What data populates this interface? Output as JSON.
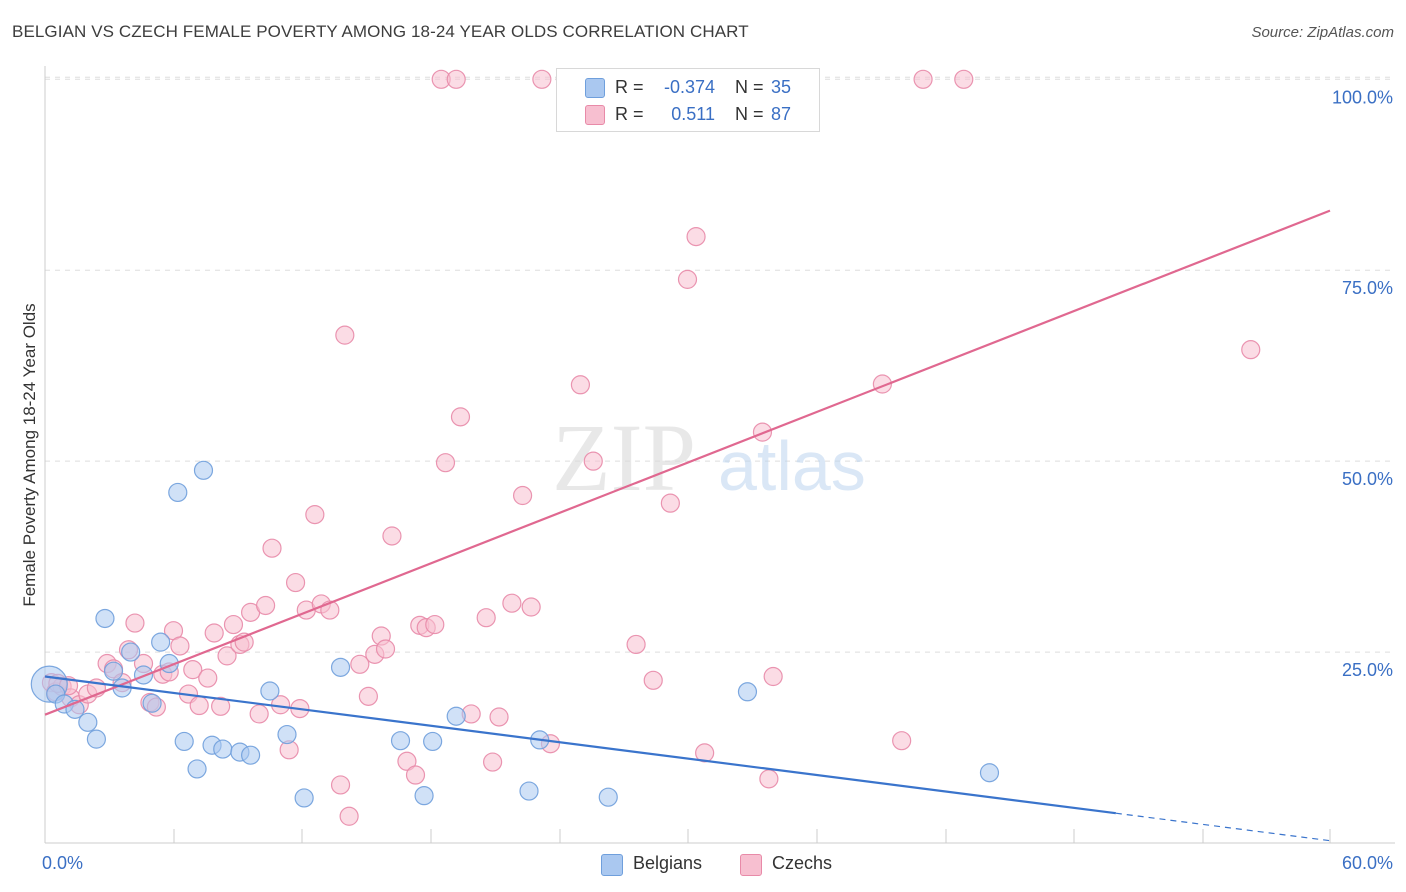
{
  "title": "BELGIAN VS CZECH FEMALE POVERTY AMONG 18-24 YEAR OLDS CORRELATION CHART",
  "source": "Source: ZipAtlas.com",
  "watermark": {
    "zip": "ZIP",
    "atlas": "atlas"
  },
  "legend_top": {
    "belgians": {
      "r_label": "R =",
      "r_value": "-0.374",
      "n_label": "N =",
      "n_value": "35"
    },
    "czechs": {
      "r_label": "R =",
      "r_value": "0.511",
      "n_label": "N =",
      "n_value": "87"
    }
  },
  "legend_bottom": {
    "belgians": "Belgians",
    "czechs": "Czechs"
  },
  "colors": {
    "belgians_fill": "#aac8f0",
    "belgians_stroke": "#6f9fdc",
    "belgians_line": "#3a74cc",
    "czechs_fill": "#f7bfd0",
    "czechs_stroke": "#e88aa8",
    "czechs_line": "#e06890",
    "axis_text": "#3a6fc4",
    "grid": "#dddddd"
  },
  "chart_data": {
    "type": "scatter",
    "title": "BELGIAN VS CZECH FEMALE POVERTY AMONG 18-24 YEAR OLDS CORRELATION CHART",
    "xlabel": "",
    "ylabel": "Female Poverty Among 18-24 Year Olds",
    "xlim": [
      0,
      60
    ],
    "ylim": [
      0,
      105
    ],
    "x_tick_labels": [
      "0.0%",
      "60.0%"
    ],
    "y_ticks": [
      25,
      50,
      75,
      100
    ],
    "y_tick_labels": [
      "25.0%",
      "50.0%",
      "75.0%",
      "100.0%"
    ],
    "grid": true,
    "legend": "top-center",
    "series": [
      {
        "name": "Belgians",
        "r": -0.374,
        "n": 35,
        "trend": {
          "x0": 0,
          "y0": 21.8,
          "x1": 50,
          "y1": 3.9,
          "dash_to_x": 60,
          "dash_to_y": 0.3
        },
        "points": [
          {
            "x": 0.2,
            "y": 20.8,
            "big": true
          },
          {
            "x": 0.5,
            "y": 19.5
          },
          {
            "x": 0.9,
            "y": 18.2
          },
          {
            "x": 1.4,
            "y": 17.5
          },
          {
            "x": 2.0,
            "y": 15.8
          },
          {
            "x": 2.4,
            "y": 13.6
          },
          {
            "x": 2.8,
            "y": 29.4
          },
          {
            "x": 3.2,
            "y": 22.5
          },
          {
            "x": 3.6,
            "y": 20.3
          },
          {
            "x": 4.0,
            "y": 25.0
          },
          {
            "x": 4.6,
            "y": 22.0
          },
          {
            "x": 5.0,
            "y": 18.3
          },
          {
            "x": 5.4,
            "y": 26.3
          },
          {
            "x": 5.8,
            "y": 23.5
          },
          {
            "x": 6.2,
            "y": 45.9
          },
          {
            "x": 6.5,
            "y": 13.3
          },
          {
            "x": 7.1,
            "y": 9.7
          },
          {
            "x": 7.4,
            "y": 48.8
          },
          {
            "x": 7.8,
            "y": 12.8
          },
          {
            "x": 8.3,
            "y": 12.3
          },
          {
            "x": 9.1,
            "y": 11.9
          },
          {
            "x": 9.6,
            "y": 11.5
          },
          {
            "x": 10.5,
            "y": 19.9
          },
          {
            "x": 11.3,
            "y": 14.2
          },
          {
            "x": 12.1,
            "y": 5.9
          },
          {
            "x": 13.8,
            "y": 23.0
          },
          {
            "x": 16.6,
            "y": 13.4
          },
          {
            "x": 17.7,
            "y": 6.2
          },
          {
            "x": 18.1,
            "y": 13.3
          },
          {
            "x": 19.2,
            "y": 16.6
          },
          {
            "x": 22.6,
            "y": 6.8
          },
          {
            "x": 23.1,
            "y": 13.5
          },
          {
            "x": 26.3,
            "y": 6.0
          },
          {
            "x": 32.8,
            "y": 19.8
          },
          {
            "x": 44.1,
            "y": 9.2
          }
        ]
      },
      {
        "name": "Czechs",
        "r": 0.511,
        "n": 87,
        "trend": {
          "x0": 0,
          "y0": 16.8,
          "x1": 60,
          "y1": 82.8
        },
        "points": [
          {
            "x": 0.3,
            "y": 21.0
          },
          {
            "x": 0.5,
            "y": 19.8
          },
          {
            "x": 0.8,
            "y": 20.5
          },
          {
            "x": 1.2,
            "y": 19.0
          },
          {
            "x": 1.6,
            "y": 18.1
          },
          {
            "x": 2.0,
            "y": 19.5
          },
          {
            "x": 2.4,
            "y": 20.3
          },
          {
            "x": 2.9,
            "y": 23.5
          },
          {
            "x": 3.2,
            "y": 22.8
          },
          {
            "x": 3.6,
            "y": 21.0
          },
          {
            "x": 3.9,
            "y": 25.3
          },
          {
            "x": 4.2,
            "y": 28.8
          },
          {
            "x": 4.6,
            "y": 23.5
          },
          {
            "x": 4.9,
            "y": 18.4
          },
          {
            "x": 5.2,
            "y": 17.8
          },
          {
            "x": 5.5,
            "y": 22.1
          },
          {
            "x": 5.8,
            "y": 22.4
          },
          {
            "x": 6.0,
            "y": 27.8
          },
          {
            "x": 6.3,
            "y": 25.8
          },
          {
            "x": 6.7,
            "y": 19.5
          },
          {
            "x": 6.9,
            "y": 22.7
          },
          {
            "x": 7.2,
            "y": 18.0
          },
          {
            "x": 7.6,
            "y": 21.6
          },
          {
            "x": 7.9,
            "y": 27.5
          },
          {
            "x": 8.2,
            "y": 17.9
          },
          {
            "x": 8.5,
            "y": 24.5
          },
          {
            "x": 8.8,
            "y": 28.6
          },
          {
            "x": 9.1,
            "y": 26.0
          },
          {
            "x": 9.3,
            "y": 26.3
          },
          {
            "x": 9.6,
            "y": 30.2
          },
          {
            "x": 10.0,
            "y": 16.9
          },
          {
            "x": 10.3,
            "y": 31.1
          },
          {
            "x": 10.6,
            "y": 38.6
          },
          {
            "x": 11.0,
            "y": 18.1
          },
          {
            "x": 11.4,
            "y": 12.2
          },
          {
            "x": 11.7,
            "y": 34.1
          },
          {
            "x": 11.9,
            "y": 17.6
          },
          {
            "x": 12.2,
            "y": 30.5
          },
          {
            "x": 12.6,
            "y": 43.0
          },
          {
            "x": 12.9,
            "y": 31.3
          },
          {
            "x": 13.3,
            "y": 30.5
          },
          {
            "x": 13.8,
            "y": 7.6
          },
          {
            "x": 14.0,
            "y": 66.5
          },
          {
            "x": 14.2,
            "y": 3.5
          },
          {
            "x": 14.7,
            "y": 23.4
          },
          {
            "x": 15.1,
            "y": 19.2
          },
          {
            "x": 15.4,
            "y": 24.7
          },
          {
            "x": 15.7,
            "y": 27.1
          },
          {
            "x": 15.9,
            "y": 25.4
          },
          {
            "x": 16.2,
            "y": 40.2
          },
          {
            "x": 16.9,
            "y": 10.7
          },
          {
            "x": 17.3,
            "y": 8.9
          },
          {
            "x": 17.5,
            "y": 28.5
          },
          {
            "x": 17.8,
            "y": 28.2
          },
          {
            "x": 18.2,
            "y": 28.6
          },
          {
            "x": 18.5,
            "y": 100.0
          },
          {
            "x": 18.7,
            "y": 49.8
          },
          {
            "x": 19.2,
            "y": 100.0
          },
          {
            "x": 19.4,
            "y": 55.8
          },
          {
            "x": 19.9,
            "y": 16.9
          },
          {
            "x": 20.6,
            "y": 29.5
          },
          {
            "x": 20.9,
            "y": 10.6
          },
          {
            "x": 21.2,
            "y": 16.5
          },
          {
            "x": 21.8,
            "y": 31.4
          },
          {
            "x": 22.3,
            "y": 45.5
          },
          {
            "x": 22.7,
            "y": 30.9
          },
          {
            "x": 23.2,
            "y": 100.0
          },
          {
            "x": 23.6,
            "y": 13.0
          },
          {
            "x": 24.3,
            "y": 100.0
          },
          {
            "x": 25.0,
            "y": 60.0
          },
          {
            "x": 25.6,
            "y": 50.0
          },
          {
            "x": 27.6,
            "y": 26.0
          },
          {
            "x": 28.4,
            "y": 21.3
          },
          {
            "x": 29.2,
            "y": 44.5
          },
          {
            "x": 30.0,
            "y": 73.8
          },
          {
            "x": 30.4,
            "y": 79.4
          },
          {
            "x": 30.8,
            "y": 11.8
          },
          {
            "x": 33.5,
            "y": 53.8
          },
          {
            "x": 33.8,
            "y": 8.4
          },
          {
            "x": 34.0,
            "y": 21.8
          },
          {
            "x": 39.1,
            "y": 60.1
          },
          {
            "x": 40.0,
            "y": 13.4
          },
          {
            "x": 41.0,
            "y": 100.0
          },
          {
            "x": 42.9,
            "y": 100.0
          },
          {
            "x": 56.3,
            "y": 64.6
          },
          {
            "x": 0.6,
            "y": 20.9
          },
          {
            "x": 1.1,
            "y": 20.6
          }
        ]
      }
    ]
  }
}
